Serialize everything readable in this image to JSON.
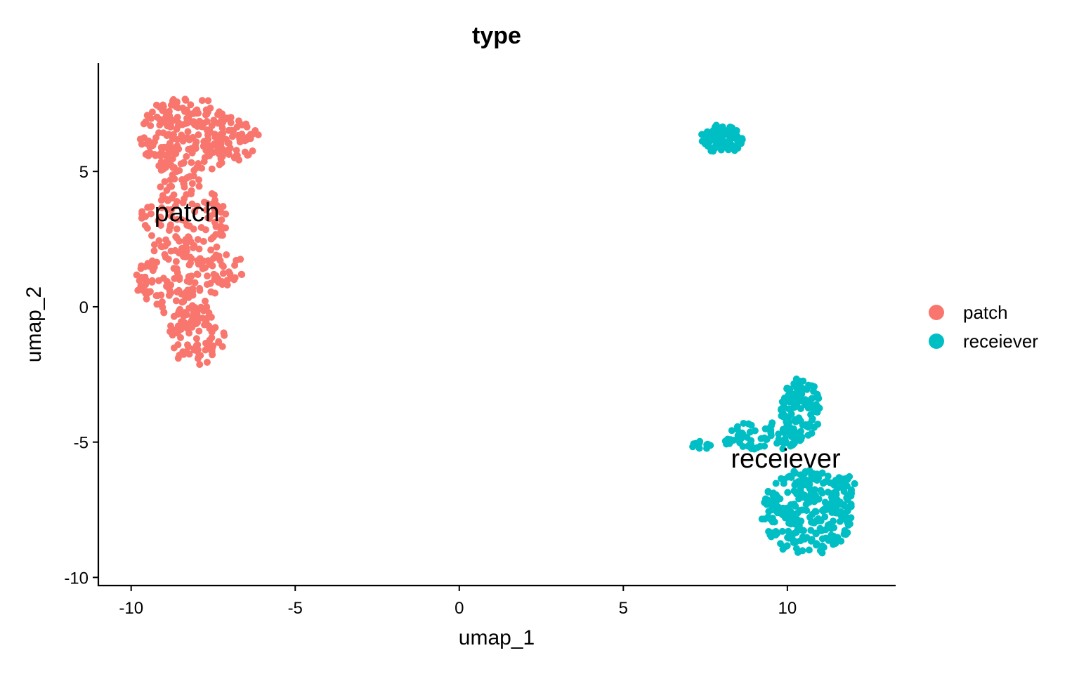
{
  "chart_data": {
    "type": "scatter",
    "title": "type",
    "xlabel": "umap_1",
    "ylabel": "umap_2",
    "xlim": [
      -11,
      13.3
    ],
    "ylim": [
      -10.3,
      9
    ],
    "x_ticks": [
      -10,
      -5,
      0,
      5,
      10
    ],
    "y_ticks": [
      -10,
      -5,
      0,
      5
    ],
    "x_tick_labels": [
      "-10",
      "-5",
      "0",
      "5",
      "10"
    ],
    "y_tick_labels": [
      "-10",
      "-5",
      "0",
      "5"
    ],
    "grid": false,
    "legend_position": "right",
    "series": [
      {
        "name": "patch",
        "color": "#F8766D",
        "label_at": [
          -8.3,
          3.5
        ],
        "clusters": [
          {
            "n": 620,
            "regions": [
              {
                "cx": -8.3,
                "cy": 6.3,
                "rx": 1.45,
                "ry": 1.5,
                "w": 0.35
              },
              {
                "cx": -6.8,
                "cy": 6.2,
                "rx": 0.7,
                "ry": 0.9,
                "w": 0.07
              },
              {
                "cx": -8.4,
                "cy": 3.2,
                "rx": 1.3,
                "ry": 1.6,
                "w": 0.2
              },
              {
                "cx": -8.6,
                "cy": 0.9,
                "rx": 1.3,
                "ry": 1.2,
                "w": 0.18
              },
              {
                "cx": -7.1,
                "cy": 1.4,
                "rx": 0.6,
                "ry": 0.6,
                "w": 0.05
              },
              {
                "cx": -8.0,
                "cy": -1.0,
                "rx": 0.9,
                "ry": 1.2,
                "w": 0.15
              }
            ]
          }
        ]
      },
      {
        "name": "receiever",
        "color": "#00BFC4",
        "label_at": [
          9.95,
          -5.6
        ],
        "clusters": [
          {
            "n": 90,
            "regions": [
              {
                "cx": 8.0,
                "cy": 6.2,
                "rx": 0.65,
                "ry": 0.55,
                "w": 1.0
              }
            ]
          },
          {
            "n": 500,
            "regions": [
              {
                "cx": 10.4,
                "cy": -3.8,
                "rx": 0.6,
                "ry": 1.2,
                "w": 0.2
              },
              {
                "cx": 9.2,
                "cy": -4.8,
                "rx": 1.3,
                "ry": 0.55,
                "w": 0.12
              },
              {
                "cx": 7.4,
                "cy": -5.1,
                "rx": 0.35,
                "ry": 0.15,
                "w": 0.03
              },
              {
                "cx": 10.6,
                "cy": -7.6,
                "rx": 1.4,
                "ry": 1.6,
                "w": 0.55
              },
              {
                "cx": 11.7,
                "cy": -6.8,
                "rx": 0.4,
                "ry": 0.6,
                "w": 0.1
              }
            ]
          }
        ]
      }
    ]
  }
}
